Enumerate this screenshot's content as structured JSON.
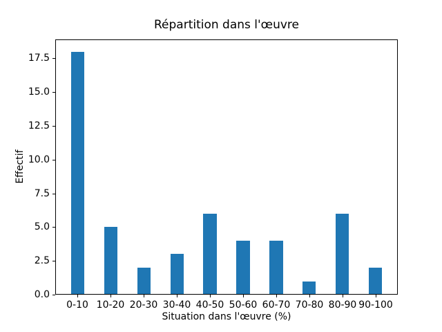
{
  "chart_data": {
    "type": "bar",
    "title": "Répartition dans l'œuvre",
    "xlabel": "Situation dans l'œuvre (%)",
    "ylabel": "Effectif",
    "categories": [
      "0-10",
      "10-20",
      "20-30",
      "30-40",
      "40-50",
      "50-60",
      "60-70",
      "70-80",
      "80-90",
      "90-100"
    ],
    "values": [
      18,
      5,
      2,
      3,
      6,
      4,
      4,
      1,
      6,
      2
    ],
    "ytick_labels": [
      "0.0",
      "2.5",
      "5.0",
      "7.5",
      "10.0",
      "12.5",
      "15.0",
      "17.5"
    ],
    "yticks": [
      0,
      2.5,
      5,
      7.5,
      10,
      12.5,
      15,
      17.5
    ],
    "ylim": [
      0,
      18.9
    ],
    "xlim": [
      -0.67,
      9.67
    ],
    "bar_width_units": 0.4,
    "bar_color": "#1f77b4",
    "axis_color": "#000000",
    "background_color": "#ffffff",
    "grid": false,
    "legend": "none"
  }
}
